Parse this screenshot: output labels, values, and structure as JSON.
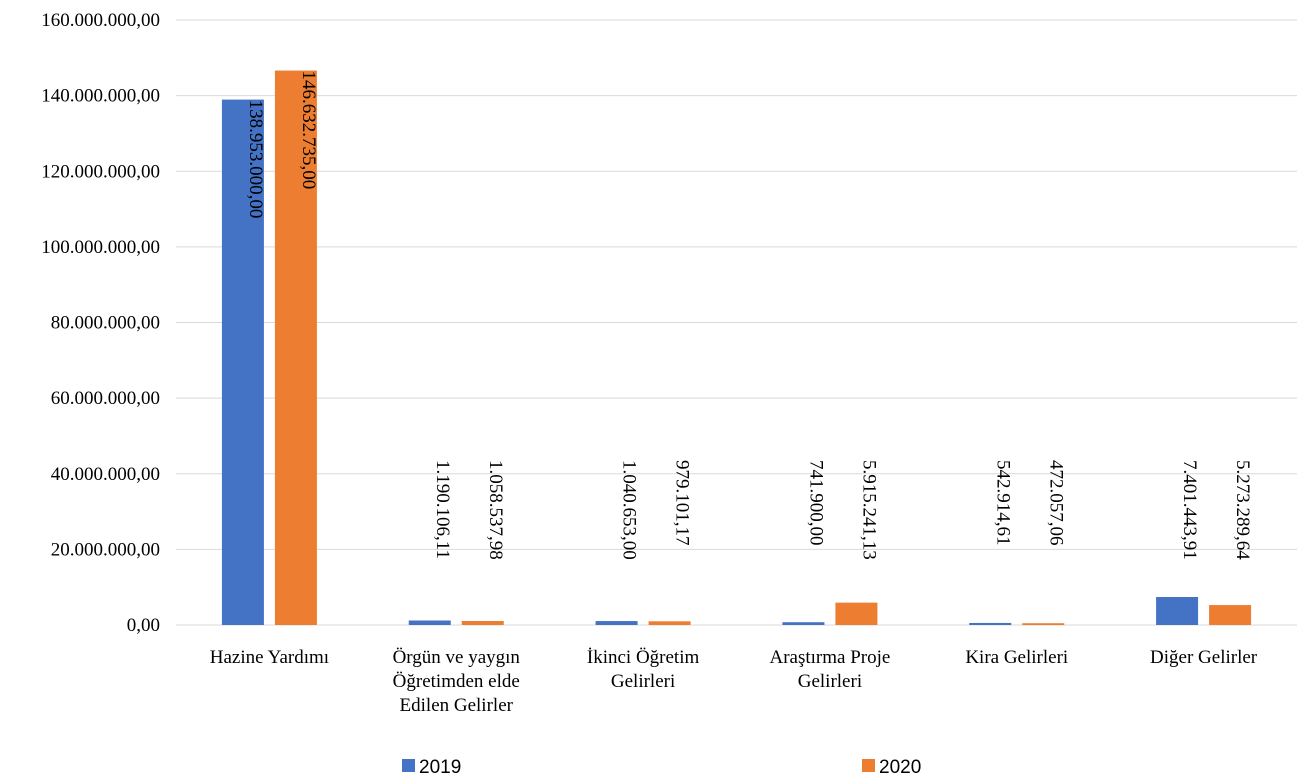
{
  "chart_data": {
    "type": "bar",
    "categories": [
      [
        "Hazine Yardımı"
      ],
      [
        "Örgün ve yaygın",
        "Öğretimden elde",
        "Edilen Gelirler"
      ],
      [
        "İkinci Öğretim",
        "Gelirleri"
      ],
      [
        "Araştırma Proje",
        "Gelirleri"
      ],
      [
        "Kira Gelirleri"
      ],
      [
        "Diğer Gelirler"
      ]
    ],
    "series": [
      {
        "name": "2019",
        "color": "#4472c4",
        "values": [
          138953000.0,
          1190106.11,
          1040653.0,
          741900.0,
          542914.61,
          7401443.91
        ],
        "labels": [
          "138.953.000,00",
          "1.190.106,11",
          "1.040.653,00",
          "741.900,00",
          "542.914,61",
          "7.401.443,91"
        ]
      },
      {
        "name": "2020",
        "color": "#ed7d31",
        "values": [
          146632735.0,
          1058537.98,
          979101.17,
          5915241.13,
          472057.06,
          5273289.64
        ],
        "labels": [
          "146.632.735,00",
          "1.058.537,98",
          "979.101,17",
          "5.915.241,13",
          "472.057,06",
          "5.273.289,64"
        ]
      }
    ],
    "yticks": [
      {
        "value": 0,
        "label": "0,00"
      },
      {
        "value": 20000000,
        "label": "20.000.000,00"
      },
      {
        "value": 40000000,
        "label": "40.000.000,00"
      },
      {
        "value": 60000000,
        "label": "60.000.000,00"
      },
      {
        "value": 80000000,
        "label": "80.000.000,00"
      },
      {
        "value": 100000000,
        "label": "100.000.000,00"
      },
      {
        "value": 120000000,
        "label": "120.000.000,00"
      },
      {
        "value": 140000000,
        "label": "140.000.000,00"
      },
      {
        "value": 160000000,
        "label": "160.000.000,00"
      }
    ],
    "ylim": [
      0,
      160000000
    ],
    "grid": true,
    "legend": "bottom",
    "title": "",
    "xlabel": "",
    "ylabel": ""
  }
}
